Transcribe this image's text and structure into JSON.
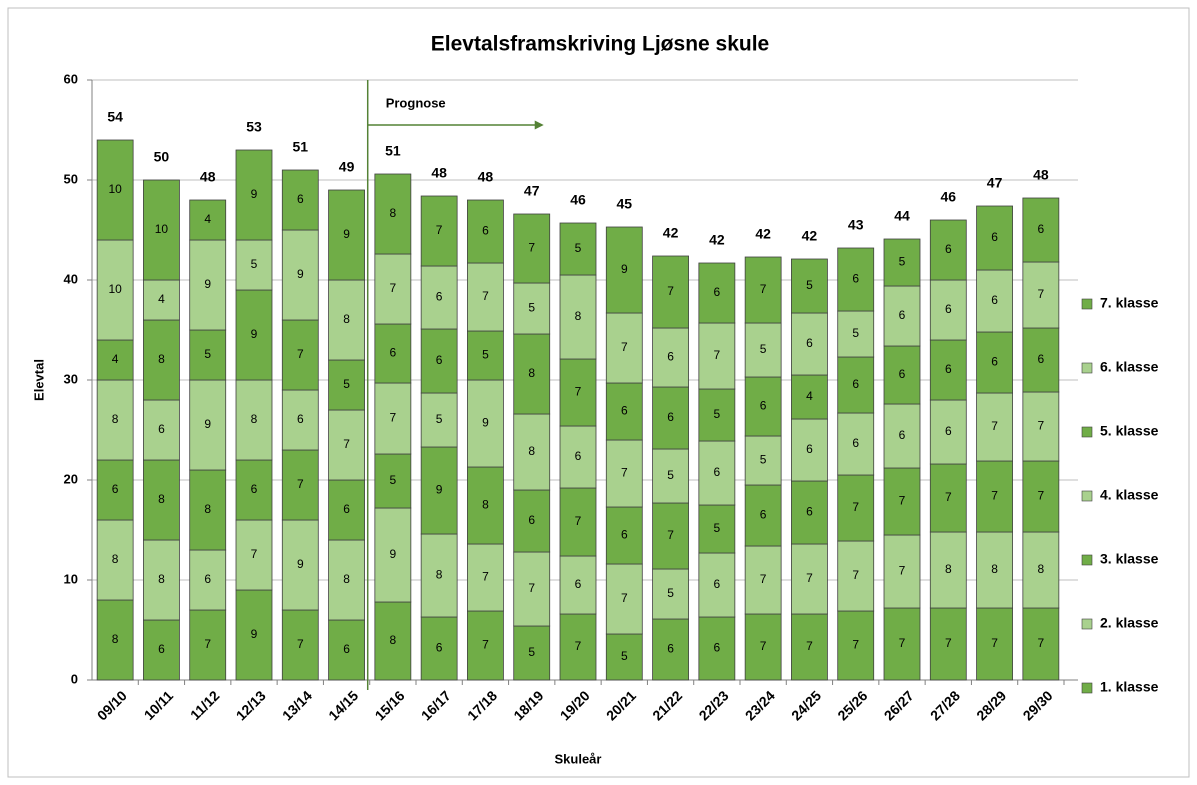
{
  "chart_data": {
    "type": "stacked_bar",
    "title": "Elevtalsframskriving Ljøsne skule",
    "xlabel": "Skuleår",
    "ylabel": "Elevtal",
    "annotation": "Prognose",
    "categories": [
      "09/10",
      "10/11",
      "11/12",
      "12/13",
      "13/14",
      "14/15",
      "15/16",
      "16/17",
      "17/18",
      "18/19",
      "19/20",
      "20/21",
      "21/22",
      "22/23",
      "23/24",
      "24/25",
      "25/26",
      "26/27",
      "27/28",
      "28/29",
      "29/30"
    ],
    "totals": [
      54,
      50,
      48,
      53,
      51,
      49,
      51,
      48,
      48,
      47,
      46,
      45,
      42,
      42,
      42,
      42,
      43,
      44,
      46,
      47,
      48
    ],
    "ylim": [
      0,
      60
    ],
    "yticks": [
      0,
      10,
      20,
      30,
      40,
      50,
      60
    ],
    "grid": true,
    "legend": "right",
    "series": [
      {
        "name": "1. klasse",
        "color": "#70ad47",
        "values": [
          8,
          6,
          7,
          9,
          7,
          6,
          7.8,
          6.3,
          6.9,
          5.4,
          6.6,
          4.6,
          6.1,
          6.3,
          6.6,
          6.6,
          6.9,
          7.2,
          7.2,
          7.2,
          7.2
        ],
        "value_labels": [
          "8",
          "6",
          "7",
          "9",
          "7",
          "6",
          "8",
          "6",
          "7",
          "5",
          "7",
          "5",
          "6",
          "6",
          "7",
          "7",
          "7",
          "7",
          "7",
          "7",
          "7"
        ]
      },
      {
        "name": "2. klasse",
        "color": "#a9d18e",
        "values": [
          8,
          8,
          6,
          7,
          9,
          8,
          9.4,
          8.3,
          6.7,
          7.4,
          5.8,
          7.0,
          5.0,
          6.4,
          6.8,
          7.0,
          7.0,
          7.3,
          7.6,
          7.6,
          7.6
        ],
        "value_labels": [
          "8",
          "8",
          "6",
          "7",
          "9",
          "8",
          "9",
          "8",
          "7",
          "7",
          "6",
          "7",
          "5",
          "6",
          "7",
          "7",
          "7",
          "7",
          "8",
          "8",
          "8"
        ]
      },
      {
        "name": "3. klasse",
        "color": "#70ad47",
        "values": [
          6,
          8,
          8,
          6,
          7,
          6,
          5.4,
          8.7,
          7.7,
          6.2,
          6.8,
          5.7,
          6.6,
          4.8,
          6.1,
          6.3,
          6.6,
          6.7,
          6.8,
          7.1,
          7.1
        ],
        "value_labels": [
          "6",
          "8",
          "8",
          "6",
          "7",
          "6",
          "5",
          "9",
          "8",
          "6",
          "7",
          "6",
          "7",
          "5",
          "6",
          "6",
          "7",
          "7",
          "7",
          "7",
          "7"
        ]
      },
      {
        "name": "4. klasse",
        "color": "#a9d18e",
        "values": [
          8,
          6,
          9,
          8,
          6,
          7,
          7.1,
          5.4,
          8.7,
          7.6,
          6.2,
          6.7,
          5.4,
          6.4,
          4.9,
          6.2,
          6.2,
          6.4,
          6.4,
          6.8,
          6.9
        ],
        "value_labels": [
          "8",
          "6",
          "9",
          "8",
          "6",
          "7",
          "7",
          "5",
          "9",
          "8",
          "6",
          "7",
          "5",
          "6",
          "5",
          "6",
          "6",
          "6",
          "6",
          "7",
          "7"
        ]
      },
      {
        "name": "5. klasse",
        "color": "#70ad47",
        "values": [
          4,
          8,
          5,
          9,
          7,
          5,
          5.9,
          6.4,
          4.9,
          8.0,
          6.7,
          5.7,
          6.2,
          5.2,
          5.9,
          4.4,
          5.6,
          5.8,
          6.0,
          6.1,
          6.4
        ],
        "value_labels": [
          "4",
          "8",
          "5",
          "9",
          "7",
          "5",
          "6",
          "6",
          "5",
          "8",
          "7",
          "6",
          "6",
          "5",
          "6",
          "4",
          "6",
          "6",
          "6",
          "6",
          "6"
        ]
      },
      {
        "name": "6. klasse",
        "color": "#a9d18e",
        "values": [
          10,
          4,
          9,
          5,
          9,
          8,
          7.0,
          6.3,
          6.8,
          5.1,
          8.4,
          7.0,
          5.9,
          6.6,
          5.4,
          6.2,
          4.6,
          6.0,
          6.0,
          6.2,
          6.6
        ],
        "value_labels": [
          "10",
          "4",
          "9",
          "5",
          "9",
          "8",
          "7",
          "6",
          "7",
          "5",
          "8",
          "7",
          "6",
          "7",
          "5",
          "6",
          "5",
          "6",
          "6",
          "6",
          "7"
        ]
      },
      {
        "name": "7. klasse",
        "color": "#70ad47",
        "values": [
          10,
          10,
          4,
          9,
          6,
          9,
          8.0,
          7.0,
          6.3,
          6.9,
          5.2,
          8.6,
          7.2,
          6.0,
          6.6,
          5.4,
          6.3,
          4.7,
          6.0,
          6.4,
          6.4
        ],
        "value_labels": [
          "10",
          "10",
          "4",
          "9",
          "6",
          "9",
          "8",
          "7",
          "6",
          "7",
          "5",
          "9",
          "7",
          "6",
          "7",
          "5",
          "6",
          "5",
          "6",
          "6",
          "6"
        ]
      }
    ]
  }
}
